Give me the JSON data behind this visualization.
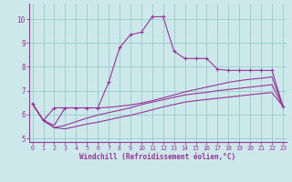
{
  "background_color": "#cce8ea",
  "grid_color": "#99cccc",
  "line_color": "#993399",
  "axis_color": "#993399",
  "xlabel": "Windchill (Refroidissement éolien,°C)",
  "xlim": [
    -0.3,
    23.3
  ],
  "ylim": [
    4.85,
    10.65
  ],
  "yticks": [
    5,
    6,
    7,
    8,
    9,
    10
  ],
  "xticks": [
    0,
    1,
    2,
    3,
    4,
    5,
    6,
    7,
    8,
    9,
    10,
    11,
    12,
    13,
    14,
    15,
    16,
    17,
    18,
    19,
    20,
    21,
    22,
    23
  ],
  "series": [
    {
      "x": [
        0,
        1,
        2,
        3,
        4,
        5,
        6,
        7,
        8,
        9,
        10,
        11,
        12,
        13,
        14,
        15,
        16,
        17,
        18,
        19,
        20,
        21,
        22,
        23
      ],
      "y": [
        6.45,
        5.75,
        5.45,
        5.4,
        5.5,
        5.6,
        5.68,
        5.78,
        5.88,
        5.97,
        6.08,
        6.2,
        6.32,
        6.42,
        6.52,
        6.58,
        6.63,
        6.68,
        6.73,
        6.78,
        6.83,
        6.88,
        6.92,
        6.35
      ],
      "marker": false
    },
    {
      "x": [
        0,
        1,
        2,
        3,
        4,
        5,
        6,
        7,
        8,
        9,
        10,
        11,
        12,
        13,
        14,
        15,
        16,
        17,
        18,
        19,
        20,
        21,
        22,
        23
      ],
      "y": [
        6.45,
        5.75,
        5.45,
        5.55,
        5.7,
        5.85,
        5.98,
        6.08,
        6.18,
        6.28,
        6.42,
        6.52,
        6.62,
        6.72,
        6.82,
        6.88,
        6.93,
        7.0,
        7.05,
        7.1,
        7.15,
        7.2,
        7.25,
        6.35
      ],
      "marker": false
    },
    {
      "x": [
        0,
        1,
        2,
        3,
        4,
        5,
        6,
        7,
        8,
        9,
        10,
        11,
        12,
        13,
        14,
        15,
        16,
        17,
        18,
        19,
        20,
        21,
        22,
        23
      ],
      "y": [
        6.45,
        5.75,
        5.55,
        6.28,
        6.28,
        6.28,
        6.28,
        6.3,
        6.35,
        6.4,
        6.48,
        6.58,
        6.7,
        6.82,
        6.95,
        7.05,
        7.15,
        7.25,
        7.35,
        7.42,
        7.48,
        7.52,
        7.58,
        6.35
      ],
      "marker": false
    },
    {
      "x": [
        0,
        1,
        2,
        3,
        4,
        5,
        6,
        7,
        8,
        9,
        10,
        11,
        12,
        13,
        14,
        15,
        16,
        17,
        18,
        19,
        20,
        21,
        22,
        23
      ],
      "y": [
        6.45,
        5.75,
        6.28,
        6.28,
        6.28,
        6.28,
        6.28,
        7.35,
        8.8,
        9.35,
        9.45,
        10.1,
        10.1,
        8.65,
        8.35,
        8.35,
        8.35,
        7.9,
        7.85,
        7.85,
        7.85,
        7.85,
        7.85,
        6.35
      ],
      "marker": true
    }
  ]
}
